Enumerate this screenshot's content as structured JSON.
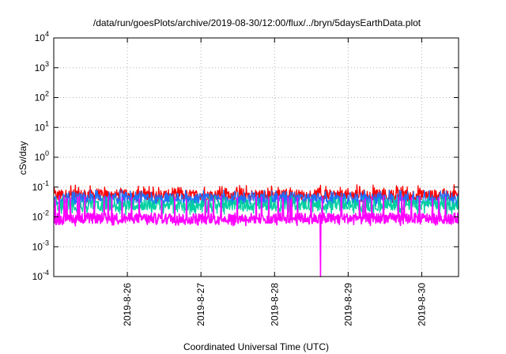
{
  "chart_data": {
    "type": "line",
    "title": "/data/run/goesPlots/archive/2019-08-30/12:00/flux/../bryn/5daysEarthData.plot",
    "xlabel": "Coordinated Universal Time (UTC)",
    "ylabel": "cSv/day",
    "x_range": [
      "2019-08-25T00:00",
      "2019-08-30T12:00"
    ],
    "x_ticks": [
      "2019-8-26",
      "2019-8-27",
      "2019-8-28",
      "2019-8-29",
      "2019-8-30"
    ],
    "y_scale": "log",
    "ylim": [
      0.0001,
      10000
    ],
    "y_ticks": [
      {
        "base": "10",
        "exp": "-4"
      },
      {
        "base": "10",
        "exp": "-3"
      },
      {
        "base": "10",
        "exp": "-2"
      },
      {
        "base": "10",
        "exp": "-1"
      },
      {
        "base": "10",
        "exp": "0"
      },
      {
        "base": "10",
        "exp": "1"
      },
      {
        "base": "10",
        "exp": "2"
      },
      {
        "base": "10",
        "exp": "3"
      },
      {
        "base": "10",
        "exp": "4"
      }
    ],
    "grid": true,
    "series": [
      {
        "color": "#ff0000",
        "typical": 0.055,
        "low": 0.03,
        "high": 0.12
      },
      {
        "color": "#1f6fff",
        "typical": 0.04,
        "low": 0.02,
        "high": 0.08
      },
      {
        "color": "#00d0a0",
        "typical": 0.025,
        "low": 0.012,
        "high": 0.05
      },
      {
        "color": "#ff00ff",
        "typical": 0.009,
        "low": 0.005,
        "high": 0.05
      }
    ],
    "annotations": [
      {
        "series_color": "#ff00ff",
        "x": "2019-08-28T15:00",
        "y": 0.0001,
        "note": "drop"
      }
    ]
  }
}
